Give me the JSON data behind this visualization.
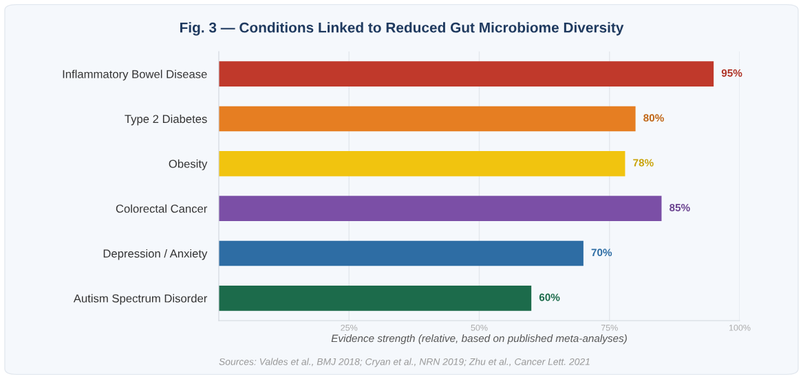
{
  "chart_data": {
    "type": "bar",
    "orientation": "horizontal",
    "title": "Fig. 3 — Conditions Linked to Reduced Gut Microbiome Diversity",
    "categories": [
      "Inflammatory Bowel Disease",
      "Type 2 Diabetes",
      "Obesity",
      "Colorectal Cancer",
      "Depression / Anxiety",
      "Autism Spectrum Disorder"
    ],
    "values": [
      95,
      80,
      78,
      85,
      70,
      60
    ],
    "colors": [
      "#c0392b",
      "#e67e22",
      "#f1c40f",
      "#7b4fa6",
      "#2e6da4",
      "#1c6b4b"
    ],
    "value_labels": [
      "95%",
      "80%",
      "78%",
      "85%",
      "70%",
      "60%"
    ],
    "xlabel": "Evidence strength (relative, based on published meta-analyses)",
    "xlim": [
      0,
      100
    ],
    "xticks": [
      {
        "value": 25,
        "label": "25%"
      },
      {
        "value": 50,
        "label": "50%"
      },
      {
        "value": 75,
        "label": "75%"
      },
      {
        "value": 100,
        "label": "100%"
      }
    ],
    "grid": "x",
    "legend": false,
    "annotations": [
      "Sources: Valdes et al., BMJ 2018; Cryan et al., NRN 2019; Zhu et al., Cancer Lett. 2021"
    ]
  }
}
